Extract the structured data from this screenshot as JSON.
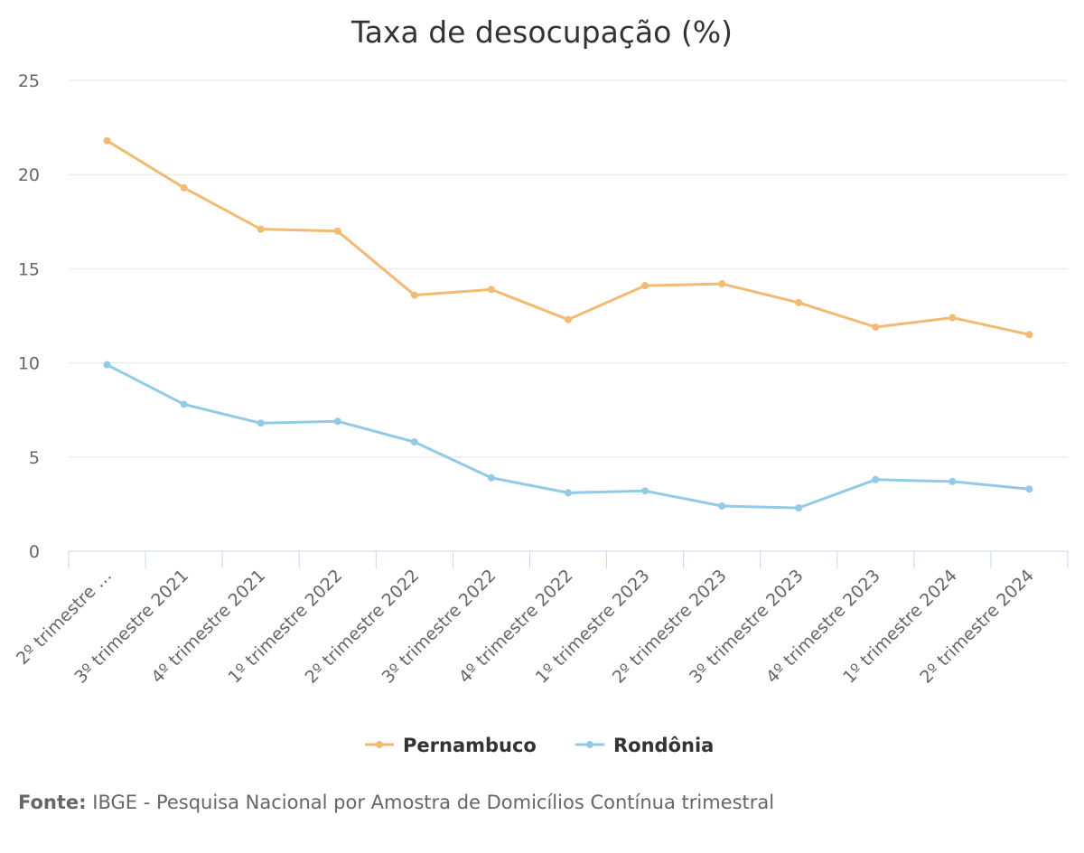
{
  "chart_data": {
    "type": "line",
    "title": "Taxa de desocupação (%)",
    "xlabel": "",
    "ylabel": "",
    "ylim": [
      0,
      25
    ],
    "yticks": [
      "0",
      "5",
      "10",
      "15",
      "20",
      "25"
    ],
    "grid": true,
    "legend_position": "bottom",
    "categories": [
      "2º trimestre …",
      "3º trimestre 2021",
      "4º trimestre 2021",
      "1º trimestre 2022",
      "2º trimestre 2022",
      "3º trimestre 2022",
      "4º trimestre 2022",
      "1º trimestre 2023",
      "2º trimestre 2023",
      "3º trimestre 2023",
      "4º trimestre 2023",
      "1º trimestre 2024",
      "2º trimestre 2024"
    ],
    "series": [
      {
        "name": "Pernambuco",
        "color": "#f1bb74",
        "values": [
          21.8,
          19.3,
          17.1,
          17.0,
          13.6,
          13.9,
          12.3,
          14.1,
          14.2,
          13.2,
          11.9,
          12.4,
          11.5
        ]
      },
      {
        "name": "Rondônia",
        "color": "#93cae5",
        "values": [
          9.9,
          7.8,
          6.8,
          6.9,
          5.8,
          3.9,
          3.1,
          3.2,
          2.4,
          2.3,
          3.8,
          3.7,
          3.3
        ]
      }
    ]
  },
  "source": {
    "label": "Fonte:",
    "text": "IBGE - Pesquisa Nacional por Amostra de Domicílios Contínua trimestral"
  }
}
